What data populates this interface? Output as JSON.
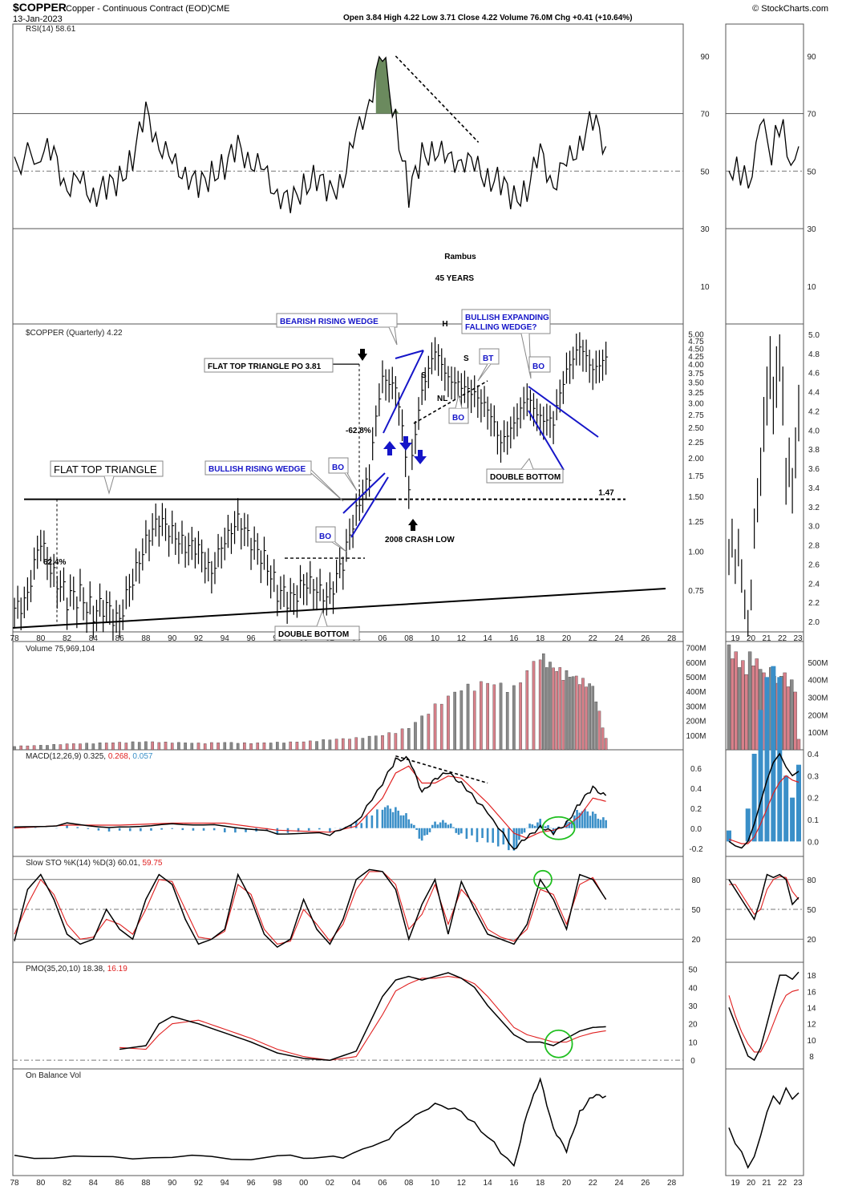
{
  "header": {
    "symbol": "$COPPER",
    "description": "Copper - Continuous Contract (EOD)",
    "exchange": "CME",
    "date": "13-Jan-2023",
    "ohlc": "Open 3.84  High 4.22  Low 3.71  Close 4.22  Volume 76.0M  Chg +0.41 (+10.64%)",
    "branding": "© StockCharts.com"
  },
  "colors": {
    "price": "#000000",
    "signal": "#e02020",
    "hist": "#3a8fc8",
    "vol_up": "#d9808a",
    "vol_down": "#8a8a8a",
    "annotation_blue": "#1515c8",
    "highlight": "#1fbf1f",
    "rsi_fill": "#6b8a5e"
  },
  "chart_data": [
    {
      "type": "line",
      "panel": "rsi",
      "title": "RSI(14) 58.61",
      "yticks": [
        "90",
        "70",
        "50",
        "30",
        "10"
      ],
      "x": [
        1978,
        1980,
        1981,
        1982,
        1983,
        1984,
        1985,
        1986,
        1987,
        1988,
        1989,
        1990,
        1991,
        1992,
        1993,
        1994,
        1995,
        1996,
        1997,
        1998,
        1999,
        2000,
        2001,
        2002,
        2003,
        2004,
        2005,
        2006,
        2007,
        2008,
        2009,
        2010,
        2011,
        2012,
        2013,
        2014,
        2015,
        2016,
        2017,
        2018,
        2019,
        2020,
        2021,
        2022,
        2023
      ],
      "values": [
        52,
        58,
        55,
        45,
        46,
        42,
        44,
        47,
        55,
        70,
        60,
        52,
        50,
        44,
        49,
        52,
        58,
        54,
        49,
        43,
        38,
        45,
        48,
        42,
        48,
        62,
        75,
        90,
        68,
        42,
        55,
        58,
        53,
        55,
        51,
        48,
        46,
        40,
        44,
        56,
        46,
        52,
        60,
        68,
        58.61
      ],
      "ylim": [
        0,
        100
      ]
    },
    {
      "type": "bar",
      "panel": "price",
      "title": "$COPPER (Quarterly) 4.22",
      "scale": "log",
      "yticks": [
        "5.00",
        "4.75",
        "4.50",
        "4.25",
        "4.00",
        "3.75",
        "3.50",
        "3.25",
        "3.00",
        "2.75",
        "2.50",
        "2.25",
        "2.00",
        "1.75",
        "1.50",
        "1.25",
        "1.00",
        "0.75"
      ],
      "xticks": [
        "78",
        "80",
        "82",
        "84",
        "86",
        "88",
        "90",
        "92",
        "94",
        "96",
        "98",
        "00",
        "02",
        "04",
        "06",
        "08",
        "10",
        "12",
        "14",
        "16",
        "18",
        "20",
        "22",
        "24",
        "26",
        "28"
      ],
      "x": [
        1978,
        1979,
        1980,
        1981,
        1982,
        1983,
        1984,
        1985,
        1986,
        1987,
        1988,
        1989,
        1990,
        1991,
        1992,
        1993,
        1994,
        1995,
        1996,
        1997,
        1998,
        1999,
        2000,
        2001,
        2002,
        2003,
        2004,
        2005,
        2006,
        2007,
        2008,
        2009,
        2010,
        2011,
        2012,
        2013,
        2014,
        2015,
        2016,
        2017,
        2018,
        2019,
        2020,
        2021,
        2022,
        2023
      ],
      "values": [
        0.62,
        0.75,
        1.05,
        0.85,
        0.7,
        0.72,
        0.65,
        0.64,
        0.63,
        0.78,
        1.1,
        1.25,
        1.15,
        1.05,
        1.0,
        0.88,
        1.05,
        1.3,
        1.05,
        0.95,
        0.75,
        0.68,
        0.82,
        0.72,
        0.75,
        0.9,
        1.35,
        1.75,
        3.6,
        3.4,
        1.55,
        3.3,
        4.4,
        3.6,
        3.4,
        3.2,
        2.9,
        2.2,
        2.6,
        3.1,
        2.7,
        2.6,
        3.8,
        4.6,
        3.8,
        4.22
      ]
    },
    {
      "type": "bar",
      "panel": "volume",
      "title": "Volume 75,969,104",
      "yticks": [
        "700M",
        "600M",
        "500M",
        "400M",
        "300M",
        "200M",
        "100M"
      ],
      "unit": "M contracts",
      "x": [
        1978,
        1980,
        1982,
        1984,
        1986,
        1988,
        1990,
        1992,
        1994,
        1996,
        1998,
        2000,
        2002,
        2004,
        2006,
        2008,
        2010,
        2012,
        2014,
        2016,
        2018,
        2019,
        2020,
        2021,
        2022,
        2023
      ],
      "values": [
        25,
        30,
        40,
        45,
        50,
        55,
        50,
        45,
        50,
        45,
        50,
        55,
        70,
        80,
        100,
        150,
        300,
        420,
        460,
        420,
        650,
        560,
        520,
        480,
        430,
        76
      ]
    },
    {
      "type": "line",
      "panel": "macd",
      "title": "MACD(12,26,9)",
      "macd_value": "0.325",
      "signal_value": "0.268",
      "hist_value": "0.057",
      "yticks": [
        "0.6",
        "0.4",
        "0.2",
        "0.0",
        "-0.2"
      ],
      "x": [
        1978,
        1982,
        1986,
        1990,
        1994,
        1998,
        2002,
        2004,
        2006,
        2007,
        2008,
        2009,
        2010,
        2011,
        2012,
        2014,
        2016,
        2017,
        2018,
        2019,
        2020,
        2021,
        2022,
        2023
      ],
      "series": [
        {
          "name": "MACD",
          "values": [
            0.0,
            0.05,
            0.02,
            0.06,
            0.04,
            -0.04,
            -0.06,
            0.05,
            0.45,
            0.68,
            0.7,
            0.35,
            0.5,
            0.55,
            0.45,
            0.15,
            -0.2,
            -0.1,
            0.02,
            -0.05,
            0.05,
            0.25,
            0.4,
            0.325
          ]
        },
        {
          "name": "Signal",
          "values": [
            0.0,
            0.03,
            0.03,
            0.05,
            0.05,
            -0.02,
            -0.04,
            0.02,
            0.3,
            0.55,
            0.62,
            0.45,
            0.45,
            0.52,
            0.5,
            0.25,
            -0.05,
            -0.1,
            -0.04,
            -0.02,
            0.02,
            0.12,
            0.3,
            0.268
          ]
        }
      ],
      "ylim": [
        -0.25,
        0.75
      ]
    },
    {
      "type": "line",
      "panel": "stoch",
      "title": "Slow STO %K(14) %D(3)",
      "k_value": "60.01",
      "d_value": "59.75",
      "yticks": [
        "80",
        "50",
        "20"
      ],
      "x": [
        1978,
        1979,
        1980,
        1981,
        1982,
        1983,
        1984,
        1985,
        1986,
        1987,
        1988,
        1989,
        1990,
        1991,
        1992,
        1993,
        1994,
        1995,
        1996,
        1997,
        1998,
        1999,
        2000,
        2001,
        2002,
        2003,
        2004,
        2005,
        2006,
        2007,
        2008,
        2009,
        2010,
        2011,
        2012,
        2013,
        2014,
        2015,
        2016,
        2017,
        2018,
        2019,
        2020,
        2021,
        2022,
        2023
      ],
      "series": [
        {
          "name": "%K",
          "values": [
            18,
            70,
            85,
            60,
            25,
            15,
            20,
            50,
            30,
            20,
            60,
            85,
            75,
            40,
            15,
            20,
            30,
            85,
            60,
            25,
            12,
            20,
            60,
            30,
            15,
            40,
            80,
            90,
            88,
            70,
            20,
            55,
            80,
            25,
            78,
            50,
            25,
            20,
            15,
            35,
            80,
            60,
            30,
            85,
            80,
            60.01
          ]
        },
        {
          "name": "%D",
          "values": [
            25,
            55,
            80,
            65,
            35,
            20,
            22,
            40,
            35,
            25,
            50,
            80,
            78,
            50,
            22,
            20,
            28,
            75,
            65,
            30,
            15,
            18,
            50,
            35,
            18,
            35,
            70,
            88,
            88,
            75,
            30,
            45,
            75,
            35,
            70,
            55,
            30,
            22,
            18,
            30,
            70,
            65,
            35,
            75,
            82,
            59.75
          ]
        }
      ],
      "ylim": [
        0,
        100
      ]
    },
    {
      "type": "line",
      "panel": "pmo",
      "title": "PMO(35,20,10)",
      "pmo_value": "18.38",
      "signal_value": "16.19",
      "yticks": [
        "50",
        "40",
        "30",
        "20",
        "10",
        "0"
      ],
      "x": [
        1986,
        1988,
        1989,
        1990,
        1992,
        1994,
        1996,
        1998,
        2000,
        2002,
        2004,
        2006,
        2007,
        2008,
        2009,
        2010,
        2011,
        2012,
        2013,
        2014,
        2016,
        2017,
        2018,
        2019,
        2020,
        2021,
        2022,
        2023
      ],
      "series": [
        {
          "name": "PMO",
          "values": [
            6,
            8,
            20,
            24,
            20,
            15,
            10,
            4,
            1,
            0,
            5,
            35,
            44,
            46,
            44,
            46,
            48,
            45,
            40,
            30,
            14,
            10,
            10,
            8,
            12,
            16,
            18,
            18.38
          ]
        },
        {
          "name": "Signal",
          "values": [
            7,
            6,
            14,
            20,
            22,
            17,
            12,
            6,
            2,
            0,
            2,
            25,
            38,
            42,
            45,
            45,
            46,
            45,
            42,
            35,
            18,
            14,
            12,
            10,
            10,
            13,
            15,
            16.19
          ]
        }
      ],
      "ylim": [
        -3,
        52
      ]
    },
    {
      "type": "line",
      "panel": "obv",
      "title": "On Balance Vol",
      "x": [
        1978,
        1984,
        1990,
        1996,
        2000,
        2003,
        2006,
        2008,
        2010,
        2012,
        2014,
        2016,
        2017,
        2018,
        2019,
        2020,
        2021,
        2022,
        2023
      ],
      "values": [
        2,
        1,
        2,
        1,
        2,
        1,
        10,
        25,
        35,
        30,
        15,
        -5,
        30,
        50,
        20,
        5,
        30,
        40,
        40
      ]
    }
  ],
  "annotations": {
    "rambus": "Rambus",
    "years": "45 YEARS",
    "flat_top_triangle": "FLAT TOP TRIANGLE",
    "flat_top_po": "FLAT TOP TRIANGLE PO 3.81",
    "bearish_wedge": "BEARISH RISING WEDGE",
    "bullish_rising": "BULLISH RISING WEDGE",
    "bullish_expanding_1": "BULLISH EXPANDING",
    "bullish_expanding_2": "FALLING WEDGE?",
    "double_bottom": "DOUBLE BOTTOM",
    "crash_low": "2008 CRASH LOW",
    "bo": "BO",
    "bt": "BT",
    "nl": "NL",
    "s": "S",
    "h": "H",
    "pct_62": "62.4%",
    "pct_628": "-62.8%",
    "level_147": "1.47"
  },
  "inset": {
    "xticks": [
      "19",
      "20",
      "21",
      "22",
      "23"
    ],
    "rsi_yticks": [
      "90",
      "70",
      "50",
      "30"
    ],
    "price_yticks": [
      "5.0",
      "4.8",
      "4.6",
      "4.4",
      "4.2",
      "4.0",
      "3.8",
      "3.6",
      "3.4",
      "3.2",
      "3.0",
      "2.8",
      "2.6",
      "2.4",
      "2.2",
      "2.0"
    ],
    "vol_yticks": [
      "500M",
      "400M",
      "300M",
      "200M",
      "100M"
    ],
    "macd_yticks": [
      "0.4",
      "0.3",
      "0.2",
      "0.1",
      "0.0"
    ],
    "stoch_yticks": [
      "80",
      "50",
      "20"
    ],
    "pmo_yticks": [
      "18",
      "16",
      "14",
      "12",
      "10",
      "8"
    ]
  }
}
